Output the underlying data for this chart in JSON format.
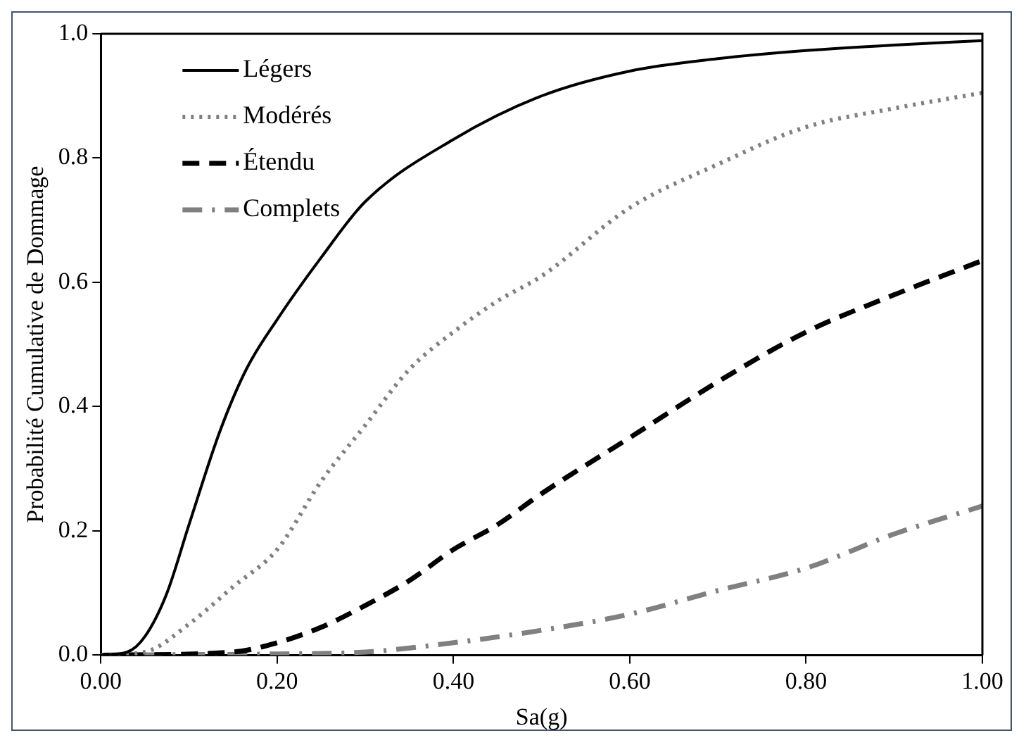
{
  "chart_data": {
    "type": "line",
    "xlabel": "Sa(g)",
    "ylabel": "Probabilité Cumulative de Dommage",
    "xlim": [
      0,
      1
    ],
    "ylim": [
      0,
      1
    ],
    "xticks": [
      {
        "value": 0,
        "label": "0.00"
      },
      {
        "value": 0.2,
        "label": "0.20"
      },
      {
        "value": 0.4,
        "label": "0.40"
      },
      {
        "value": 0.6,
        "label": "0.60"
      },
      {
        "value": 0.8,
        "label": "0.80"
      },
      {
        "value": 1,
        "label": "1.00"
      }
    ],
    "yticks": [
      {
        "value": 0,
        "label": "0.0"
      },
      {
        "value": 0.2,
        "label": "0.2"
      },
      {
        "value": 0.4,
        "label": "0.4"
      },
      {
        "value": 0.6,
        "label": "0.6"
      },
      {
        "value": 0.8,
        "label": "0.8"
      },
      {
        "value": 1,
        "label": "1.0"
      }
    ],
    "grid": false,
    "legend": "top left",
    "marker": "none",
    "series": [
      {
        "name": "Légers",
        "color": "#000000",
        "line_style": "solid",
        "x": [
          0,
          0.03,
          0.05,
          0.075,
          0.1,
          0.135,
          0.165,
          0.2,
          0.25,
          0.3,
          0.4,
          0.5,
          0.6,
          0.7,
          0.8,
          0.9,
          1.0
        ],
        "values": [
          0,
          0.005,
          0.03,
          0.1,
          0.21,
          0.36,
          0.46,
          0.54,
          0.64,
          0.73,
          0.83,
          0.9,
          0.94,
          0.96,
          0.973,
          0.982,
          0.989
        ]
      },
      {
        "name": "Modérés",
        "color": "#808080",
        "line_style": "dotted",
        "x": [
          0,
          0.05,
          0.1,
          0.15,
          0.2,
          0.25,
          0.3,
          0.35,
          0.4,
          0.45,
          0.5,
          0.6,
          0.7,
          0.8,
          0.9,
          1.0
        ],
        "values": [
          0,
          0.005,
          0.05,
          0.11,
          0.17,
          0.28,
          0.37,
          0.46,
          0.52,
          0.57,
          0.61,
          0.72,
          0.79,
          0.85,
          0.88,
          0.905
        ]
      },
      {
        "name": "Étendu",
        "color": "#000000",
        "line_style": "dashed",
        "x": [
          0,
          0.15,
          0.2,
          0.25,
          0.3,
          0.35,
          0.4,
          0.45,
          0.5,
          0.6,
          0.7,
          0.8,
          0.9,
          1.0
        ],
        "values": [
          0,
          0.005,
          0.02,
          0.045,
          0.08,
          0.12,
          0.17,
          0.21,
          0.26,
          0.35,
          0.44,
          0.52,
          0.58,
          0.635
        ]
      },
      {
        "name": "Complets",
        "color": "#808080",
        "line_style": "dashdot",
        "x": [
          0,
          0.2,
          0.3,
          0.4,
          0.5,
          0.6,
          0.7,
          0.8,
          0.9,
          1.0
        ],
        "values": [
          0,
          0.002,
          0.005,
          0.02,
          0.04,
          0.066,
          0.104,
          0.14,
          0.195,
          0.24
        ]
      }
    ]
  }
}
